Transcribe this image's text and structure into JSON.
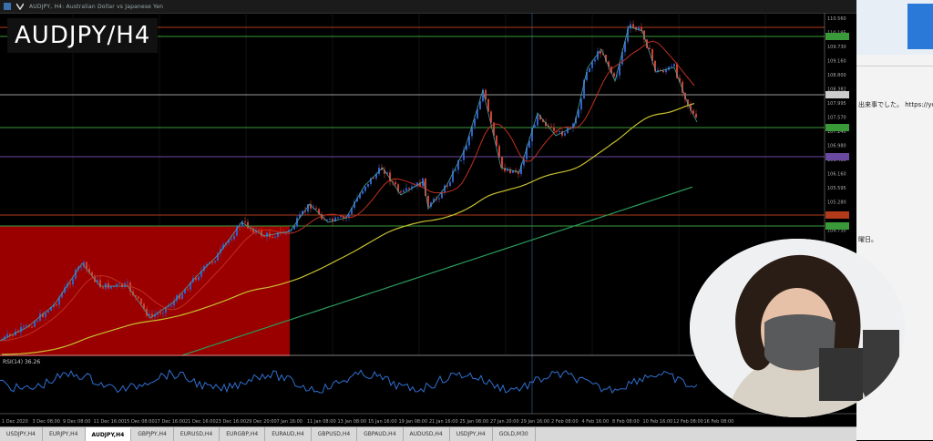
{
  "window": {
    "title_bar": "AUDJPY, H4: Australian Dollar vs Japanese Yen"
  },
  "overlay_title": "AUDJPY/H4",
  "indicator_label": "RSI(14) 36.26",
  "price_labels": [
    "110.560",
    "110.195",
    "109.730",
    "109.160",
    "108.800",
    "108.382",
    "107.995",
    "107.570",
    "107.240",
    "106.980",
    "106.455",
    "106.160",
    "105.595",
    "105.280",
    "105.010",
    "104.730"
  ],
  "time_labels": [
    "1 Dec 2020",
    "3 Dec 08:00",
    "9 Dec 08:00",
    "11 Dec 16:00",
    "15 Dec 08:00",
    "17 Dec 16:00",
    "21 Dec 16:00",
    "23 Dec 16:00",
    "29 Dec 20:00",
    "7 Jan 16:00",
    "11 Jan 08:00",
    "13 Jan 08:00",
    "15 Jan 16:00",
    "19 Jan 08:00",
    "21 Jan 16:00",
    "25 Jan 08:00",
    "27 Jan 20:00",
    "29 Jan 16:00",
    "2 Feb 08:00",
    "4 Feb 16:00",
    "8 Feb 08:00",
    "10 Feb 16:00",
    "12 Feb 08:00",
    "16 Feb 08:00"
  ],
  "tabs": [
    {
      "label": "USDJPY,H4",
      "active": false
    },
    {
      "label": "EURJPY,H4",
      "active": false
    },
    {
      "label": "AUDJPY,H4",
      "active": true
    },
    {
      "label": "GBPJPY,H4",
      "active": false
    },
    {
      "label": "EURUSD,H4",
      "active": false
    },
    {
      "label": "EURGBP,H4",
      "active": false
    },
    {
      "label": "EURAUD,H4",
      "active": false
    },
    {
      "label": "GBPUSD,H4",
      "active": false
    },
    {
      "label": "GBPAUD,H4",
      "active": false
    },
    {
      "label": "AUDUSD,H4",
      "active": false
    },
    {
      "label": "USDJPY,H4",
      "active": false
    },
    {
      "label": "GOLD,M30",
      "active": false
    }
  ],
  "right_panel": {
    "text1": "出来事でした。 https://yo",
    "text2": "曜日。"
  },
  "colors": {
    "background": "#000000",
    "demand_zone": "#9a0000",
    "up_candle": "#3060c8",
    "down_candle": "#d04030",
    "ma_fast": "#c03020",
    "ma_mid": "#c8c030",
    "ma_slow": "#2a9a5a",
    "rsi_line": "#2f6fd0",
    "hline_red": "#b03a1a",
    "hline_green": "#3a9a3a",
    "hline_white": "#9a9a9a",
    "hline_purple": "#6a4aa0"
  }
}
